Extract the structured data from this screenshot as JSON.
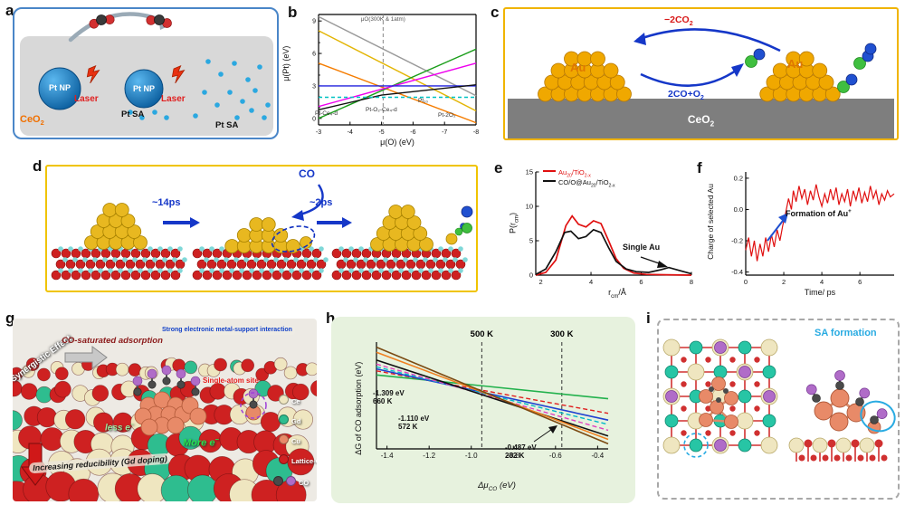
{
  "labels": {
    "a": "a",
    "b": "b",
    "c": "c",
    "d": "d",
    "e": "e",
    "f": "f",
    "g": "g",
    "h": "h",
    "i": "i"
  },
  "colors": {
    "au_gold": "#F0A800",
    "au_gold2": "#E8B820",
    "pt_blue": "#1273B5",
    "laser_red": "#E83010",
    "ceo2_gray": "#7E7E7E",
    "o_red": "#CE2121",
    "ti_cyan": "#7FD8D8",
    "cu_salmon": "#E88A68",
    "ce_cream": "#EFE6C0",
    "gd_green": "#2EBD8F",
    "c_green": "#3FBF3F",
    "o_blue": "#2050D0",
    "arrow_blue": "#1537C8",
    "co_purple": "#B06CC8",
    "co_gray": "#4A4A4A",
    "sa_cyan": "#29ABE2",
    "pt_sa_dot": "#2BA8E0"
  },
  "panel_a": {
    "np1": "Pt NP",
    "np2": "Pt NP",
    "laser1": "Laser",
    "laser2": "Laser",
    "sa1": "Pt SA",
    "sa2": "Pt SA",
    "support": {
      "p1": "CeO",
      "s1": "2"
    }
  },
  "panel_b": {
    "ylabel": "μ(Pt) (eV)",
    "xlabel": "μ(O) (eV)",
    "species": {
      "l1": "Pt-Ce₄-d",
      "l2": "Pt-O₂-Ce₄-d",
      "l3": "Pt₁₀",
      "l4": "Pt-2O₂"
    }
  },
  "panel_c": {
    "minus2co2": {
      "p1": "−2CO",
      "s1": "2"
    },
    "co_plus_o2": {
      "p1": "2CO+O",
      "s1": "2"
    },
    "au1": "Au",
    "au2": "Au",
    "support": {
      "p1": "CeO",
      "s1": "2"
    }
  },
  "panel_d": {
    "t14": "~14ps",
    "t2": "~2ps",
    "co": "CO"
  },
  "panel_e": {
    "ylabel": {
      "p1": "P(r",
      "s1": "cm",
      "p2": ")"
    },
    "xlabel": {
      "p1": "r",
      "s1": "cm",
      "p2": "/Å"
    },
    "leg1": {
      "p1": "Au",
      "s1": "20",
      "p2": "/TiO",
      "s2": "2-x"
    },
    "leg2": {
      "p1": "CO/O@Au",
      "s1": "20",
      "p2": "/TiO",
      "s2": "2-x"
    },
    "single_au": "Single Au"
  },
  "panel_f": {
    "ylabel": "Charge of selected Au",
    "xlabel": "Time/ ps",
    "annotation": {
      "p1": "Formation of Au",
      "sup": "+"
    }
  },
  "panel_g": {
    "synergistic": "Synergistic Effect",
    "co_saturated": "CO-saturated adsorption",
    "semsi": "Strong electronic metal-support interaction",
    "single_atom_site": "Single-atom site",
    "less_e": {
      "p1": "less e",
      "sup": "−"
    },
    "more_e": {
      "p1": "More e",
      "sup": "−"
    },
    "increasing": "Increasing reducibility (Gd doping)",
    "legend": {
      "ce": "Ce",
      "gd": "Gd",
      "cu": "Cu",
      "lattice_o": "Lattice-O",
      "co": "CO"
    }
  },
  "panel_h": {
    "ylabel": "ΔG of CO adsorption (eV)",
    "xlabel": {
      "p1": "Δμ",
      "s1": "CO",
      "p2": " (eV)"
    },
    "ann1a": "-1.309 eV",
    "ann1b": "660 K",
    "ann2a": "-1.110 eV",
    "ann2b": "572 K",
    "ann3a": "-0.487 eV",
    "ann3b": "282 K"
  },
  "panel_i": {
    "sa_formation": "SA formation"
  },
  "chart_data": [
    {
      "id": "b",
      "type": "line",
      "xlabel": "μ(O) (eV)",
      "ylabel": "μ(Pt) (eV)",
      "xlim": [
        -3,
        -8
      ],
      "ylim": [
        -0.6,
        9.6
      ],
      "xticks": [
        -3,
        -4,
        -5,
        -6,
        -7,
        -8
      ],
      "xtick_labels": [
        "-3",
        "-4",
        "-5",
        "-6",
        "-7",
        "-8"
      ],
      "yticks": [
        0,
        3,
        6,
        9
      ],
      "ytick_labels": [
        "0",
        "3",
        "6",
        "9"
      ],
      "minor_yticks": [
        1,
        2,
        4,
        5,
        7,
        8
      ],
      "vlines": [
        {
          "x": -5.05,
          "label": "μO(300K & 1atm)"
        }
      ],
      "series": [
        {
          "name": "gray",
          "color": "#9A9A9A",
          "w": 1.4,
          "points": [
            [
              -3,
              9.4
            ],
            [
              -8,
              2.1
            ]
          ]
        },
        {
          "name": "yellow",
          "color": "#E3B505",
          "w": 1.4,
          "points": [
            [
              -3,
              8.1
            ],
            [
              -8,
              0.7
            ]
          ]
        },
        {
          "name": "orange",
          "color": "#F57C00",
          "w": 1.4,
          "points": [
            [
              -3,
              5.1
            ],
            [
              -8,
              -0.4
            ]
          ]
        },
        {
          "name": "green",
          "color": "#1B9E1B",
          "w": 1.4,
          "points": [
            [
              -3,
              0.0
            ],
            [
              -8,
              6.4
            ]
          ]
        },
        {
          "name": "magenta",
          "color": "#EE00EE",
          "w": 1.4,
          "points": [
            [
              -3,
              1.1
            ],
            [
              -8,
              5.1
            ]
          ]
        },
        {
          "name": "blue",
          "color": "#2222DD",
          "w": 1.4,
          "points": [
            [
              -3,
              3.0
            ],
            [
              -8,
              3.0
            ]
          ]
        },
        {
          "name": "black",
          "color": "#111111",
          "w": 1.4,
          "points": [
            [
              -3,
              0.8
            ],
            [
              -5.0,
              2.15
            ],
            [
              -8,
              3.1
            ]
          ]
        },
        {
          "name": "cyan-dashed",
          "color": "#00C2C2",
          "w": 1.4,
          "dash": "4 3",
          "points": [
            [
              -3,
              1.95
            ],
            [
              -8,
              1.95
            ]
          ]
        }
      ]
    },
    {
      "id": "e",
      "type": "line",
      "xlabel": "r_cm/Å",
      "ylabel": "P(r_cm)",
      "xlim": [
        1.8,
        8
      ],
      "ylim": [
        0,
        15
      ],
      "xticks": [
        2,
        4,
        6,
        8
      ],
      "xtick_labels": [
        "2",
        "4",
        "6",
        "8"
      ],
      "yticks": [
        0,
        5,
        10,
        15
      ],
      "ytick_labels": [
        "0",
        "5",
        "10",
        "15"
      ],
      "series": [
        {
          "name": "Au20/TiO2-x",
          "color": "#E01010",
          "w": 1.7,
          "points": [
            [
              1.8,
              0
            ],
            [
              2.2,
              0.4
            ],
            [
              2.6,
              2.2
            ],
            [
              3.0,
              7.2
            ],
            [
              3.25,
              8.6
            ],
            [
              3.5,
              7.4
            ],
            [
              3.8,
              7.0
            ],
            [
              4.1,
              7.9
            ],
            [
              4.4,
              7.5
            ],
            [
              4.7,
              5.0
            ],
            [
              5.0,
              2.4
            ],
            [
              5.3,
              1.0
            ],
            [
              5.7,
              0.3
            ],
            [
              6.2,
              0.1
            ],
            [
              7.0,
              0.05
            ],
            [
              8,
              0
            ]
          ]
        },
        {
          "name": "CO/O@Au20/TiO2-x",
          "color": "#111111",
          "w": 1.7,
          "points": [
            [
              1.8,
              0.1
            ],
            [
              2.2,
              0.9
            ],
            [
              2.6,
              3.4
            ],
            [
              2.95,
              6.2
            ],
            [
              3.2,
              6.4
            ],
            [
              3.5,
              5.3
            ],
            [
              3.8,
              5.6
            ],
            [
              4.1,
              6.6
            ],
            [
              4.4,
              6.2
            ],
            [
              4.7,
              4.0
            ],
            [
              5.0,
              2.0
            ],
            [
              5.4,
              0.9
            ],
            [
              5.8,
              0.5
            ],
            [
              6.3,
              0.4
            ],
            [
              6.8,
              0.8
            ],
            [
              7.1,
              1.1
            ],
            [
              7.5,
              0.7
            ],
            [
              8,
              0.2
            ]
          ]
        }
      ]
    },
    {
      "id": "f",
      "type": "line",
      "xlabel": "Time/ ps",
      "ylabel": "Charge of selected Au",
      "xlim": [
        0,
        7.8
      ],
      "ylim": [
        -0.42,
        0.24
      ],
      "xticks": [
        0,
        2,
        4,
        6
      ],
      "xtick_labels": [
        "0",
        "2",
        "4",
        "6"
      ],
      "yticks": [
        -0.4,
        -0.2,
        0.0,
        0.2
      ],
      "ytick_labels": [
        "-0.4",
        "-0.2",
        "0.0",
        "0.2"
      ],
      "series": [
        {
          "name": "charge",
          "color": "#E01010",
          "w": 1.2,
          "points": [
            [
              0,
              -0.26
            ],
            [
              0.15,
              -0.18
            ],
            [
              0.3,
              -0.3
            ],
            [
              0.45,
              -0.2
            ],
            [
              0.6,
              -0.33
            ],
            [
              0.75,
              -0.22
            ],
            [
              0.9,
              -0.3
            ],
            [
              1.05,
              -0.18
            ],
            [
              1.2,
              -0.27
            ],
            [
              1.35,
              -0.16
            ],
            [
              1.5,
              -0.24
            ],
            [
              1.65,
              -0.13
            ],
            [
              1.8,
              -0.2
            ],
            [
              1.95,
              -0.1
            ],
            [
              2.1,
              -0.02
            ],
            [
              2.25,
              0.07
            ],
            [
              2.4,
              0.0
            ],
            [
              2.5,
              0.12
            ],
            [
              2.65,
              0.05
            ],
            [
              2.8,
              0.15
            ],
            [
              2.95,
              0.07
            ],
            [
              3.1,
              0.13
            ],
            [
              3.25,
              0.03
            ],
            [
              3.4,
              0.12
            ],
            [
              3.55,
              0.06
            ],
            [
              3.7,
              0.16
            ],
            [
              3.85,
              0.08
            ],
            [
              4.0,
              0.02
            ],
            [
              4.15,
              0.1
            ],
            [
              4.3,
              0.04
            ],
            [
              4.45,
              0.13
            ],
            [
              4.6,
              0.06
            ],
            [
              4.75,
              0.14
            ],
            [
              4.9,
              0.03
            ],
            [
              5.05,
              0.1
            ],
            [
              5.2,
              0.05
            ],
            [
              5.35,
              0.13
            ],
            [
              5.5,
              0.02
            ],
            [
              5.65,
              0.12
            ],
            [
              5.8,
              0.06
            ],
            [
              5.95,
              0.14
            ],
            [
              6.1,
              0.04
            ],
            [
              6.25,
              0.11
            ],
            [
              6.4,
              0.05
            ],
            [
              6.55,
              0.15
            ],
            [
              6.7,
              0.07
            ],
            [
              6.85,
              0.12
            ],
            [
              7.0,
              0.03
            ],
            [
              7.15,
              0.1
            ],
            [
              7.3,
              0.06
            ],
            [
              7.45,
              0.12
            ],
            [
              7.6,
              0.08
            ],
            [
              7.8,
              0.1
            ]
          ]
        }
      ]
    },
    {
      "id": "h",
      "type": "line",
      "xlabel": "Δμ_CO (eV)",
      "ylabel": "ΔG of CO adsorption (eV)",
      "xlim": [
        -1.45,
        -0.35
      ],
      "ylim": [
        -1.9,
        1.25
      ],
      "xticks": [
        -1.4,
        -1.2,
        -1.0,
        -0.8,
        -0.6,
        -0.4
      ],
      "xtick_labels": [
        "-1.4",
        "-1.2",
        "-1.0",
        "-0.8",
        "-0.6",
        "-0.4"
      ],
      "vlines": [
        {
          "x": -0.95,
          "label": "500 K"
        },
        {
          "x": -0.57,
          "label": "300 K"
        }
      ],
      "series": [
        {
          "name": "g1",
          "color": "#22B14C",
          "w": 1.6,
          "points": [
            [
              -1.45,
              0.28
            ],
            [
              -0.35,
              -0.42
            ]
          ]
        },
        {
          "name": "g2",
          "color": "#E02020",
          "w": 1.4,
          "dash": "5 3",
          "points": [
            [
              -1.45,
              0.4
            ],
            [
              -0.35,
              -0.85
            ]
          ]
        },
        {
          "name": "g3",
          "color": "#2040D0",
          "w": 1.6,
          "points": [
            [
              -1.45,
              0.46
            ],
            [
              -0.35,
              -1.05
            ]
          ]
        },
        {
          "name": "g4",
          "color": "#00B8C8",
          "w": 1.4,
          "dash": "5 3",
          "points": [
            [
              -1.45,
              0.52
            ],
            [
              -0.35,
              -1.18
            ]
          ]
        },
        {
          "name": "g5",
          "color": "#E040C0",
          "w": 1.4,
          "dash": "5 3",
          "points": [
            [
              -1.45,
              0.6
            ],
            [
              -0.35,
              -1.35
            ]
          ]
        },
        {
          "name": "g6",
          "color": "#111111",
          "w": 1.6,
          "points": [
            [
              -1.45,
              0.72
            ],
            [
              -0.35,
              -1.52
            ]
          ]
        },
        {
          "name": "g7",
          "color": "#F08020",
          "w": 1.6,
          "points": [
            [
              -1.45,
              0.95
            ],
            [
              -0.35,
              -1.62
            ]
          ]
        },
        {
          "name": "g8",
          "color": "#7B4A12",
          "w": 1.6,
          "points": [
            [
              -1.45,
              1.1
            ],
            [
              -0.35,
              -1.75
            ]
          ]
        }
      ]
    }
  ]
}
